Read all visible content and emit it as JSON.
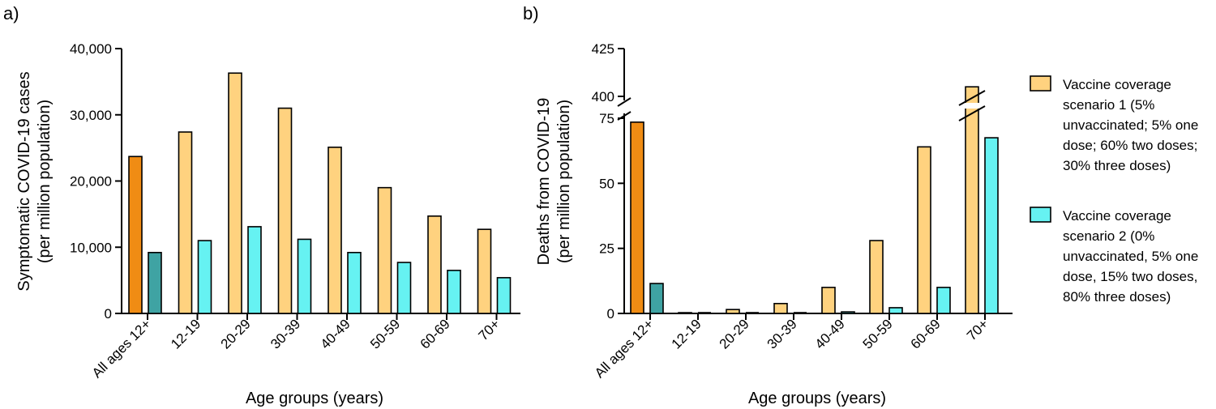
{
  "chart_data": [
    {
      "panel_label": "a)",
      "type": "bar",
      "categories": [
        "All ages 12+",
        "12-19",
        "20-29",
        "30-39",
        "40-49",
        "50-59",
        "60-69",
        "70+"
      ],
      "series": [
        {
          "name": "Vaccine coverage scenario 1 (5% unvaccinated; 5% one dose; 60% two doses; 30% three doses)",
          "values": [
            23700,
            27400,
            36300,
            31000,
            25100,
            19000,
            14700,
            12700
          ]
        },
        {
          "name": "Vaccine coverage scenario 2 (0% unvaccinated, 5% one dose, 15% two doses, 80% three doses)",
          "values": [
            9200,
            11000,
            13100,
            11200,
            9200,
            7700,
            6500,
            5400
          ]
        }
      ],
      "xlabel": "Age groups (years)",
      "ylabel": [
        "Symptomatic COVID-19 cases",
        "(per million population)"
      ],
      "ylim": [
        0,
        40000
      ],
      "yticks": [
        {
          "value": 0,
          "label": "0"
        },
        {
          "value": 10000,
          "label": "10,000"
        },
        {
          "value": 20000,
          "label": "20,000"
        },
        {
          "value": 30000,
          "label": "30,000"
        },
        {
          "value": 40000,
          "label": "40,000"
        }
      ]
    },
    {
      "panel_label": "b)",
      "type": "bar",
      "categories": [
        "All ages 12+",
        "12-19",
        "20-29",
        "30-39",
        "40-49",
        "50-59",
        "60-69",
        "70+"
      ],
      "series": [
        {
          "name": "Vaccine coverage scenario 1 (5% unvaccinated; 5% one dose; 60% two doses; 30% three doses)",
          "values": [
            73.5,
            0.3,
            1.5,
            3.8,
            10,
            28,
            64,
            405
          ]
        },
        {
          "name": "Vaccine coverage scenario 2 (0% unvaccinated, 5% one dose, 15% two doses, 80% three doses)",
          "values": [
            11.5,
            0,
            0,
            0,
            0.6,
            2.2,
            10,
            67.5
          ]
        }
      ],
      "xlabel": "Age groups (years)",
      "ylabel": [
        "Deaths from COVID-19",
        "(per million population)"
      ],
      "ylim": [
        0,
        425
      ],
      "axis_break": {
        "lower": [
          0,
          75
        ],
        "upper": [
          400,
          425
        ]
      },
      "yticks": [
        {
          "value": 0,
          "label": "0"
        },
        {
          "value": 25,
          "label": "25"
        },
        {
          "value": 50,
          "label": "50"
        },
        {
          "value": 75,
          "label": "75"
        },
        {
          "value": 400,
          "label": "400"
        },
        {
          "value": 425,
          "label": "425"
        }
      ]
    }
  ],
  "legend": [
    {
      "lines": [
        "Vaccine coverage",
        "scenario 1 (5%",
        "unvaccinated; 5% one",
        "dose; 60% two doses;",
        "30% three doses)"
      ],
      "color": "#FFD27F"
    },
    {
      "lines": [
        "Vaccine coverage",
        "scenario 2 (0%",
        "unvaccinated, 5% one",
        "dose, 15% two doses,",
        "80% three doses)"
      ],
      "color": "#66F2F2"
    }
  ],
  "colors": {
    "scenario1": "#FFD27F",
    "scenario2": "#66F2F2",
    "scenario1_all_ages": "#F08C14",
    "scenario2_all_ages": "#3FA3A3"
  }
}
